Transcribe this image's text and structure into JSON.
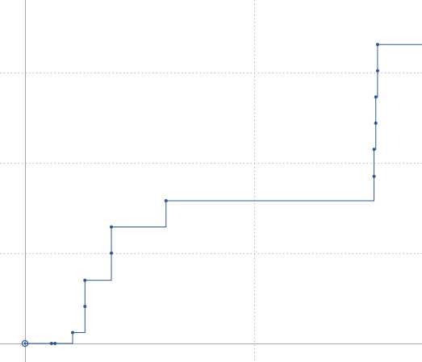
{
  "chart_data": {
    "type": "line",
    "step": "post",
    "title": "",
    "xlabel": "",
    "ylabel": "",
    "grid": true,
    "xlim": [
      -0.5,
      23.1
    ],
    "ylim": [
      -0.1,
      4.02
    ],
    "x_gridlines": [
      0,
      13
    ],
    "y_gridlines": [
      0,
      1,
      2,
      3,
      4
    ],
    "series": [
      {
        "color": "#2e5a94",
        "points": [
          {
            "x": 0.0,
            "y": 0.0
          },
          {
            "x": 1.5,
            "y": 0.0
          },
          {
            "x": 1.7,
            "y": 0.0
          },
          {
            "x": 2.7,
            "y": 0.12
          },
          {
            "x": 3.4,
            "y": 0.41
          },
          {
            "x": 3.4,
            "y": 0.7
          },
          {
            "x": 4.9,
            "y": 1.0
          },
          {
            "x": 4.9,
            "y": 1.29
          },
          {
            "x": 8.0,
            "y": 1.58
          },
          {
            "x": 19.8,
            "y": 1.85
          },
          {
            "x": 19.8,
            "y": 2.15
          },
          {
            "x": 19.9,
            "y": 2.44
          },
          {
            "x": 19.9,
            "y": 2.73
          },
          {
            "x": 20.0,
            "y": 3.02
          },
          {
            "x": 20.0,
            "y": 3.31
          },
          {
            "x": 23.1,
            "y": 3.31
          }
        ],
        "marker_points": [
          {
            "x": 1.5,
            "y": 0.0
          },
          {
            "x": 1.7,
            "y": 0.0
          },
          {
            "x": 2.7,
            "y": 0.12
          },
          {
            "x": 3.4,
            "y": 0.41
          },
          {
            "x": 3.4,
            "y": 0.7
          },
          {
            "x": 4.9,
            "y": 1.0
          },
          {
            "x": 4.9,
            "y": 1.29
          },
          {
            "x": 8.0,
            "y": 1.58
          },
          {
            "x": 19.8,
            "y": 1.85
          },
          {
            "x": 19.8,
            "y": 2.15
          },
          {
            "x": 19.9,
            "y": 2.44
          },
          {
            "x": 19.9,
            "y": 2.73
          },
          {
            "x": 20.0,
            "y": 3.02
          },
          {
            "x": 20.0,
            "y": 3.31
          }
        ],
        "origin_marker": {
          "x": 0.0,
          "y": 0.0
        }
      }
    ],
    "colors": {
      "series": "#2e5a94",
      "axis": "#a7a7a7",
      "grid": "#b9b9b9"
    }
  }
}
